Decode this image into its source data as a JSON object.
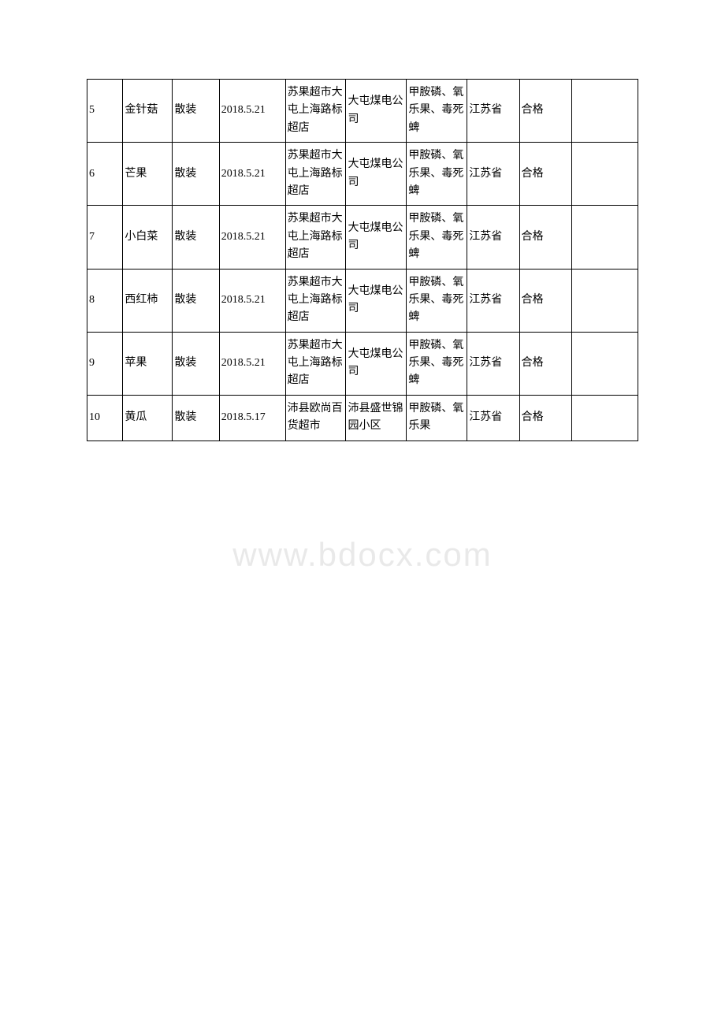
{
  "table": {
    "border_color": "#000000",
    "background_color": "#ffffff",
    "font_family": "SimSun",
    "font_size": 14,
    "rows": [
      {
        "seq": "5",
        "name": "金针菇",
        "spec": "散装",
        "date": "2018.5.21",
        "vendor": "苏果超市大屯上海路标超店",
        "address": "大屯煤电公司",
        "items": "甲胺磷、氧乐果、毒死蜱",
        "province": "江苏省",
        "result": "合格",
        "note": ""
      },
      {
        "seq": "6",
        "name": "芒果",
        "spec": "散装",
        "date": "2018.5.21",
        "vendor": "苏果超市大屯上海路标超店",
        "address": "大屯煤电公司",
        "items": "甲胺磷、氧乐果、毒死蜱",
        "province": "江苏省",
        "result": "合格",
        "note": ""
      },
      {
        "seq": "7",
        "name": "小白菜",
        "spec": "散装",
        "date": "2018.5.21",
        "vendor": "苏果超市大屯上海路标超店",
        "address": "大屯煤电公司",
        "items": "甲胺磷、氧乐果、毒死蜱",
        "province": "江苏省",
        "result": "合格",
        "note": ""
      },
      {
        "seq": "8",
        "name": "西红柿",
        "spec": "散装",
        "date": "2018.5.21",
        "vendor": "苏果超市大屯上海路标超店",
        "address": "大屯煤电公司",
        "items": "甲胺磷、氧乐果、毒死蜱",
        "province": "江苏省",
        "result": "合格",
        "note": ""
      },
      {
        "seq": "9",
        "name": "苹果",
        "spec": "散装",
        "date": "2018.5.21",
        "vendor": "苏果超市大屯上海路标超店",
        "address": "大屯煤电公司",
        "items": "甲胺磷、氧乐果、毒死蜱",
        "province": "江苏省",
        "result": "合格",
        "note": ""
      },
      {
        "seq": "10",
        "name": "黄瓜",
        "spec": "散装",
        "date": "2018.5.17",
        "vendor": "沛县欧尚百货超市",
        "address": "沛县盛世锦园小区",
        "items": "甲胺磷、氧乐果",
        "province": "江苏省",
        "result": "合格",
        "note": ""
      }
    ]
  },
  "watermark": {
    "text": "www.bdocx.com",
    "color": "rgba(200, 200, 200, 0.4)",
    "font_size": 42
  }
}
